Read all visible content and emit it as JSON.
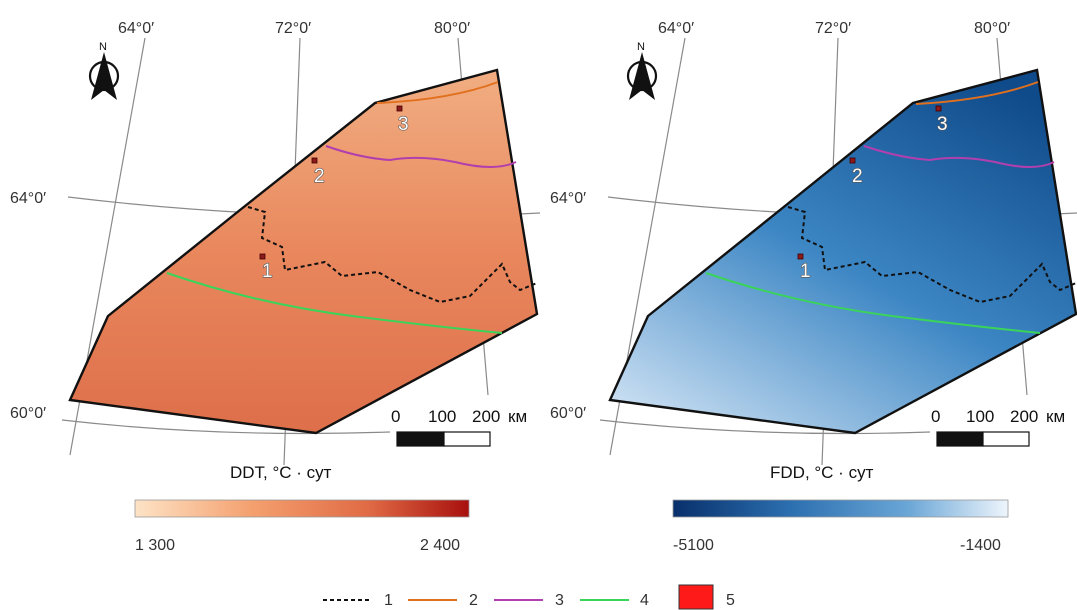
{
  "maps": [
    {
      "id": "ddt",
      "colorbar": {
        "title": "DDT, °C · сут",
        "min_label": "1 300",
        "max_label": "2 400",
        "colors": [
          "#fde3c6",
          "#f4a06e",
          "#e06a45",
          "#a8100d"
        ]
      },
      "fill_colors": [
        "#f1ae82",
        "#e9875d",
        "#dd6f4a"
      ]
    },
    {
      "id": "fdd",
      "colorbar": {
        "title": "FDD, °C · сут",
        "min_label": "-5100",
        "max_label": "-1400",
        "colors": [
          "#08306b",
          "#2c6fb0",
          "#6aa6d6",
          "#eef5fc"
        ]
      },
      "fill_colors": [
        "#0f4a8a",
        "#3c86c4",
        "#cde1f3"
      ]
    }
  ],
  "longitude_labels": [
    "64°0′",
    "72°0′",
    "80°0′"
  ],
  "latitude_labels": [
    "64°0′",
    "60°0′"
  ],
  "north_arrow_label": "N",
  "sites": [
    "1",
    "2",
    "3"
  ],
  "scale_bar": {
    "labels": [
      "0",
      "100",
      "200"
    ],
    "unit": "км"
  },
  "legend": [
    {
      "label": "1",
      "style": "dashed",
      "color": "#111111"
    },
    {
      "label": "2",
      "style": "line",
      "color": "#e0701e"
    },
    {
      "label": "3",
      "style": "line",
      "color": "#b23fae"
    },
    {
      "label": "4",
      "style": "line",
      "color": "#3ad45a"
    },
    {
      "label": "5",
      "style": "box",
      "color": "#ff1a1a"
    }
  ]
}
